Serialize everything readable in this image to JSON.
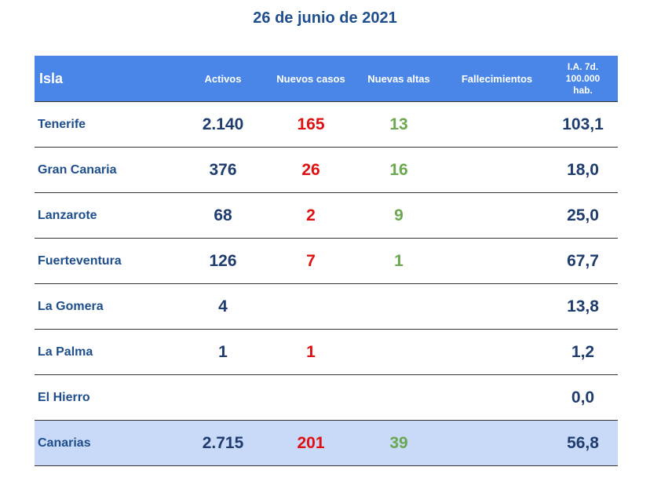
{
  "title": "26 de junio de 2021",
  "headers": {
    "isla": "Isla",
    "activos": "Activos",
    "nuevos": "Nuevos casos",
    "altas": "Nuevas altas",
    "fallecimientos": "Fallecimientos",
    "ia_line1": "I.A. 7d.",
    "ia_line2": "100.000",
    "ia_line3": "hab."
  },
  "rows": [
    {
      "isla": "Tenerife",
      "activos": "2.140",
      "nuevos": "165",
      "altas": "13",
      "fallecimientos": "",
      "ia": "103,1"
    },
    {
      "isla": "Gran Canaria",
      "activos": "376",
      "nuevos": "26",
      "altas": "16",
      "fallecimientos": "",
      "ia": "18,0"
    },
    {
      "isla": "Lanzarote",
      "activos": "68",
      "nuevos": "2",
      "altas": "9",
      "fallecimientos": "",
      "ia": "25,0"
    },
    {
      "isla": "Fuerteventura",
      "activos": "126",
      "nuevos": "7",
      "altas": "1",
      "fallecimientos": "",
      "ia": "67,7"
    },
    {
      "isla": "La Gomera",
      "activos": "4",
      "nuevos": "",
      "altas": "",
      "fallecimientos": "",
      "ia": "13,8"
    },
    {
      "isla": "La Palma",
      "activos": "1",
      "nuevos": "1",
      "altas": "",
      "fallecimientos": "",
      "ia": "1,2"
    },
    {
      "isla": "El Hierro",
      "activos": "",
      "nuevos": "",
      "altas": "",
      "fallecimientos": "",
      "ia": "0,0"
    }
  ],
  "total": {
    "isla": "Canarias",
    "activos": "2.715",
    "nuevos": "201",
    "altas": "39",
    "fallecimientos": "",
    "ia": "56,8"
  },
  "colors": {
    "header_bg": "#4a86e8",
    "total_bg": "#c9daf8",
    "title": "#1f4e8c",
    "nuevos": "#e01010",
    "altas": "#6aa84f"
  }
}
